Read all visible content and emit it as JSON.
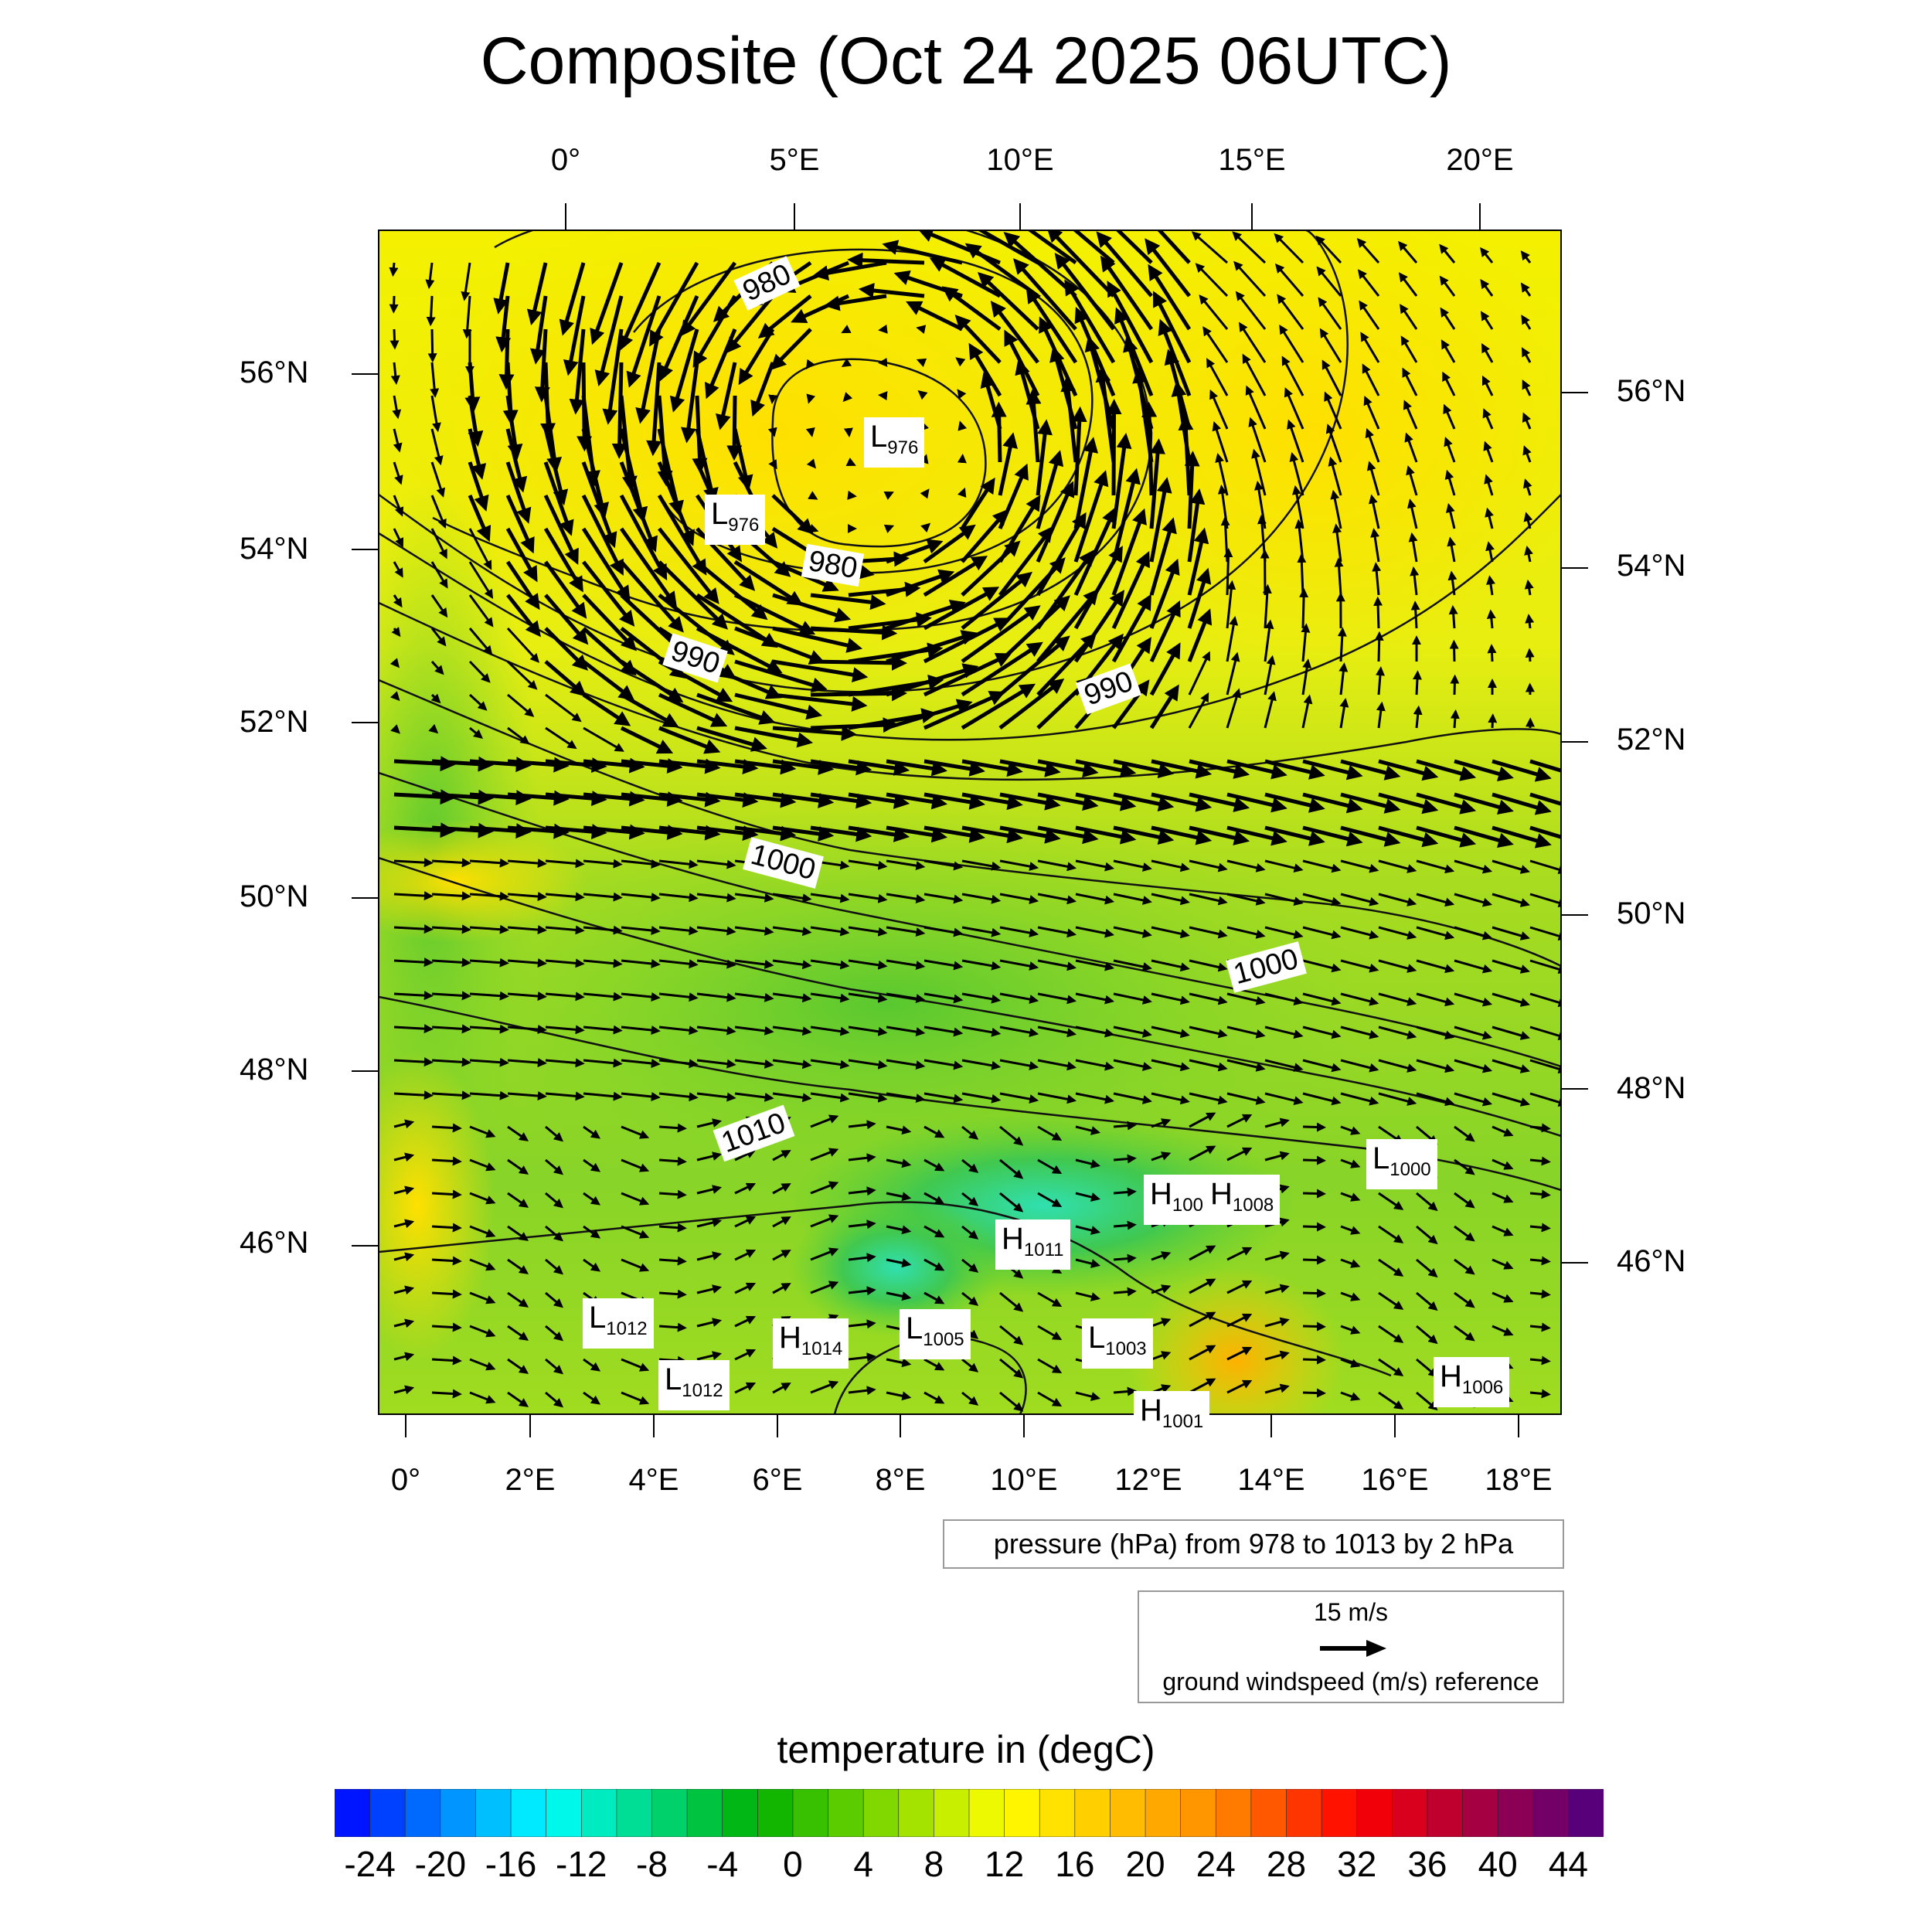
{
  "title": "Composite (Oct 24 2025 06UTC)",
  "top_lon_labels": [
    "0°",
    "5°E",
    "10°E",
    "15°E",
    "20°E"
  ],
  "bottom_lon_labels": [
    "0°",
    "2°E",
    "4°E",
    "6°E",
    "8°E",
    "10°E",
    "12°E",
    "14°E",
    "16°E",
    "18°E"
  ],
  "left_lat_labels": [
    "56°N",
    "54°N",
    "52°N",
    "50°N",
    "48°N",
    "46°N"
  ],
  "right_lat_labels": [
    "56°N",
    "54°N",
    "52°N",
    "50°N",
    "48°N",
    "46°N"
  ],
  "contour_labels": [
    "980",
    "980",
    "990",
    "990",
    "1000",
    "1000",
    "1010"
  ],
  "pressure_centers": [
    {
      "type": "L",
      "value": "976"
    },
    {
      "type": "L",
      "value": "976"
    },
    {
      "type": "L",
      "value": "1000"
    },
    {
      "type": "H",
      "value": "100"
    },
    {
      "type": "H",
      "value": "1008"
    },
    {
      "type": "H",
      "value": "1011"
    },
    {
      "type": "L",
      "value": "1012"
    },
    {
      "type": "H",
      "value": "1014"
    },
    {
      "type": "L",
      "value": "1005"
    },
    {
      "type": "L",
      "value": "1003"
    },
    {
      "type": "L",
      "value": "1012"
    },
    {
      "type": "H",
      "value": "1006"
    },
    {
      "type": "H",
      "value": "1001"
    }
  ],
  "pressure_note": "pressure (hPa) from 978 to 1013 by 2 hPa",
  "wind_reference": {
    "speed": "15 m/s",
    "label": "ground windspeed (m/s) reference"
  },
  "colorbar": {
    "title": "temperature in (degC)",
    "min": -26,
    "max": 46,
    "step": 2,
    "ticks": [
      "-24",
      "-20",
      "-16",
      "-12",
      "-8",
      "-4",
      "0",
      "4",
      "8",
      "12",
      "16",
      "20",
      "24",
      "28",
      "32",
      "36",
      "40",
      "44"
    ],
    "colors": {
      "blue": "#0000ff",
      "cyan": "#00ffff",
      "green": "#00b000",
      "yellow": "#ffff00",
      "orange": "#ff8c00",
      "red": "#ff0000",
      "purple": "#4b0082"
    }
  }
}
